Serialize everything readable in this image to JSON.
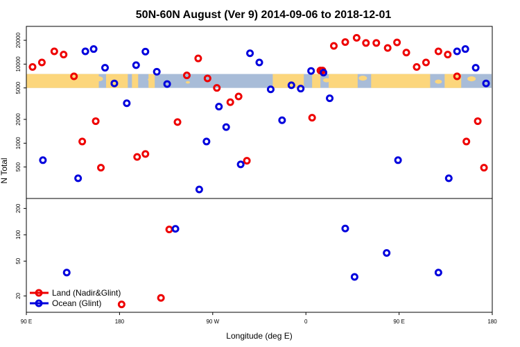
{
  "chart_data": {
    "type": "scatter",
    "title": "50N-60N August (Ver 9)   2014-09-06 to 2018-12-01",
    "xlabel": "Longitude (deg E)",
    "ylabel": "N Total",
    "x_ticks": [
      {
        "value": 0,
        "label": "90 E"
      },
      {
        "value": 90,
        "label": "180"
      },
      {
        "value": 180,
        "label": "90 W"
      },
      {
        "value": 270,
        "label": "0"
      },
      {
        "value": 360,
        "label": "90 E"
      },
      {
        "value": 450,
        "label": "180"
      }
    ],
    "xlim": [
      0,
      450
    ],
    "map_band": {
      "latitude_range": "50N-60N",
      "ocean_color": "#a8bcd8",
      "land_color": "#fcd67c",
      "y_range_total": [
        5000,
        7500
      ]
    },
    "colors": {
      "land": "#ee0000",
      "ocean": "#0000dd"
    },
    "panels": [
      {
        "name": "upper",
        "yscale": "log",
        "ylim": [
          200,
          30000
        ],
        "yticks": [
          {
            "value": 500,
            "label": "500"
          },
          {
            "value": 1000,
            "label": "1000"
          },
          {
            "value": 2000,
            "label": "2000"
          },
          {
            "value": 5000,
            "label": "5000"
          },
          {
            "value": 10000,
            "label": "10000"
          },
          {
            "value": 20000,
            "label": "20000"
          }
        ],
        "series": [
          {
            "name": "Land (Nadir&Glint)",
            "color": "#ee0000",
            "points": [
              [
                6,
                9200
              ],
              [
                15,
                10500
              ],
              [
                27,
                14500
              ],
              [
                36,
                13200
              ],
              [
                46,
                7000
              ],
              [
                54,
                1050
              ],
              [
                67,
                1900
              ],
              [
                72,
                490
              ],
              [
                107,
                670
              ],
              [
                115,
                730
              ],
              [
                146,
                1850
              ],
              [
                155,
                7200
              ],
              [
                166,
                11800
              ],
              [
                175,
                6600
              ],
              [
                184,
                5000
              ],
              [
                197,
                3300
              ],
              [
                205,
                3900
              ],
              [
                213,
                600
              ],
              [
                276,
                2100
              ],
              [
                284,
                8300
              ],
              [
                286,
                8300
              ],
              [
                297,
                17000
              ],
              [
                308,
                19000
              ],
              [
                319,
                21500
              ],
              [
                328,
                18500
              ],
              [
                338,
                18500
              ],
              [
                349,
                16000
              ],
              [
                358,
                18800
              ],
              [
                367,
                14000
              ],
              [
                377,
                9200
              ],
              [
                386,
                10500
              ],
              [
                398,
                14500
              ],
              [
                407,
                13200
              ],
              [
                416,
                7000
              ],
              [
                425,
                1050
              ],
              [
                436,
                1900
              ],
              [
                442,
                490
              ]
            ]
          },
          {
            "name": "Ocean (Glint)",
            "color": "#0000dd",
            "points": [
              [
                16,
                610
              ],
              [
                50,
                360
              ],
              [
                57,
                14500
              ],
              [
                65,
                15500
              ],
              [
                76,
                9000
              ],
              [
                85,
                5700
              ],
              [
                97,
                3200
              ],
              [
                106,
                9700
              ],
              [
                115,
                14400
              ],
              [
                126,
                8000
              ],
              [
                136,
                5600
              ],
              [
                167,
                260
              ],
              [
                174,
                1050
              ],
              [
                186,
                2900
              ],
              [
                193,
                1600
              ],
              [
                207,
                540
              ],
              [
                216,
                13700
              ],
              [
                225,
                10500
              ],
              [
                236,
                4800
              ],
              [
                247,
                1950
              ],
              [
                256,
                5400
              ],
              [
                265,
                4900
              ],
              [
                275,
                8200
              ],
              [
                287,
                7800
              ],
              [
                293,
                3700
              ],
              [
                359,
                610
              ],
              [
                408,
                360
              ],
              [
                416,
                14500
              ],
              [
                424,
                15500
              ],
              [
                434,
                9000
              ],
              [
                444,
                5700
              ]
            ]
          }
        ]
      },
      {
        "name": "lower",
        "yscale": "log",
        "ylim": [
          13,
          260
        ],
        "yticks": [
          {
            "value": 20,
            "label": "20"
          },
          {
            "value": 50,
            "label": "50"
          },
          {
            "value": 100,
            "label": "100"
          },
          {
            "value": 200,
            "label": "200"
          }
        ],
        "series": [
          {
            "name": "Land (Nadir&Glint)",
            "color": "#ee0000",
            "points": [
              [
                92,
                16
              ],
              [
                130,
                19
              ],
              [
                138,
                115
              ]
            ]
          },
          {
            "name": "Ocean (Glint)",
            "color": "#0000dd",
            "points": [
              [
                39,
                37
              ],
              [
                144,
                117
              ],
              [
                308,
                118
              ],
              [
                317,
                33
              ],
              [
                348,
                62
              ],
              [
                398,
                37
              ]
            ]
          }
        ]
      }
    ],
    "legend": {
      "position": "bottom-left",
      "entries": [
        {
          "label": "Land (Nadir&Glint)",
          "color": "#ee0000"
        },
        {
          "label": "Ocean (Glint)",
          "color": "#0000dd"
        }
      ]
    }
  }
}
